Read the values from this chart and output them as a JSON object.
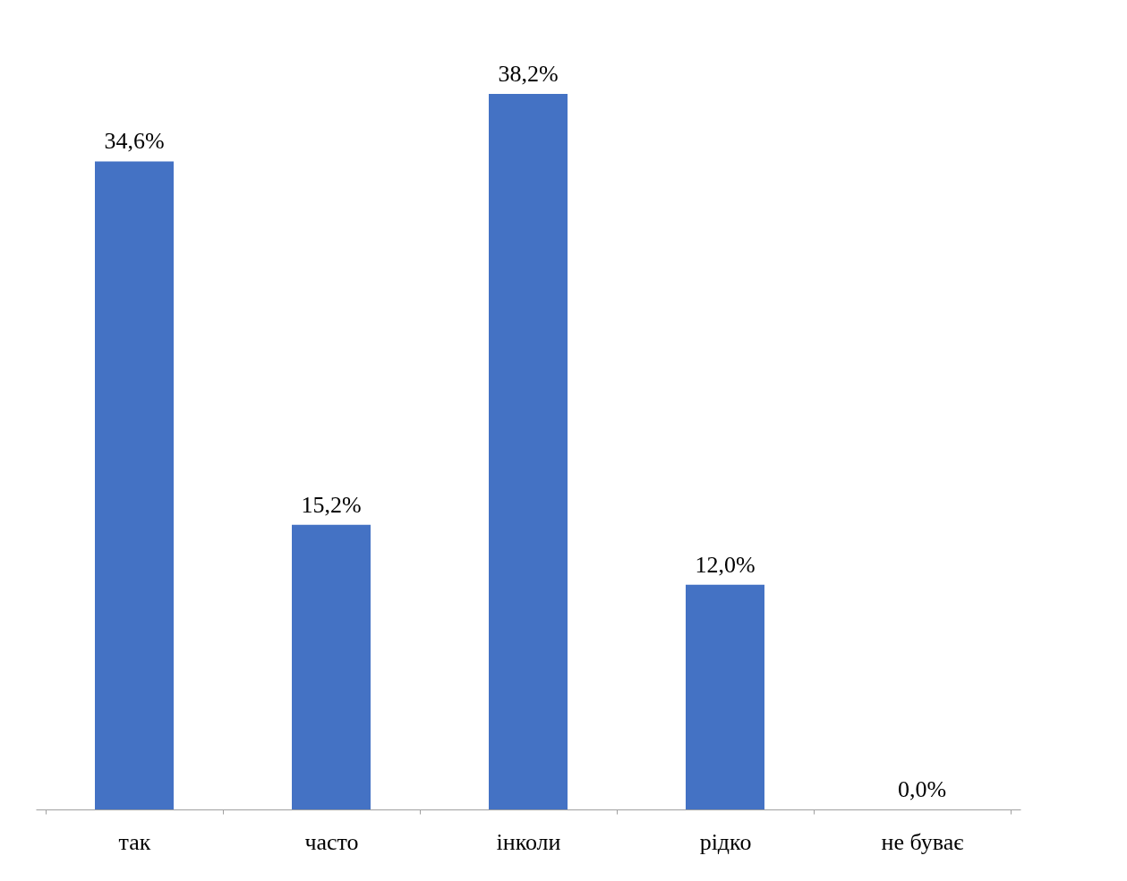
{
  "chart_data": {
    "type": "bar",
    "categories": [
      "так",
      "часто",
      "інколи",
      "рідко",
      "не буває"
    ],
    "values": [
      34.6,
      15.2,
      38.2,
      12.0,
      0.0
    ],
    "value_labels": [
      "34,6%",
      "15,2%",
      "38,2%",
      "12,0%",
      "0,0%"
    ],
    "color": "#4472c4",
    "grid": false
  }
}
